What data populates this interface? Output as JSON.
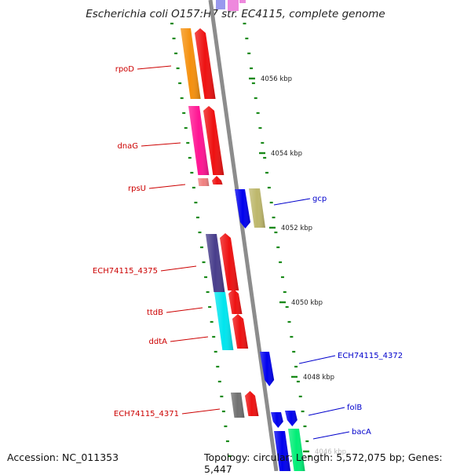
{
  "header": {
    "title": "Escherichia coli O157:H7 str. EC4115, complete genome"
  },
  "footer": {
    "accession": "Accession: NC_011353",
    "summary": "Topology: circular; Length: 5,572,075 bp; Genes: 5,447"
  },
  "map": {
    "backbone_color": "#8c8c8c",
    "tick_color": "#1a8a1a",
    "label_color_left": "#cc0000",
    "label_color_right": "#0000cc",
    "scale_labels": [
      "4056 kbp",
      "4054 kbp",
      "4052 kbp",
      "4050 kbp",
      "4048 kbp",
      "4046 kbp"
    ],
    "genes_left": [
      {
        "name": "rpoD",
        "color": "#f5900d"
      },
      {
        "name": "dnaG",
        "color": "#ff1493"
      },
      {
        "name": "rpsU",
        "color": "#f08080"
      },
      {
        "name": "ECH74115_4375",
        "color": "#483d8b"
      },
      {
        "name": "ttdB",
        "color": "#00e5ee"
      },
      {
        "name": "ddtA",
        "color": "#00e5ee"
      },
      {
        "name": "ECH74115_4371",
        "color": "#707070"
      }
    ],
    "genes_right": [
      {
        "name": "gcp",
        "color": "#bdb76b"
      },
      {
        "name": "ECH74115_4372",
        "color": "#0000ee"
      },
      {
        "name": "folB",
        "color": "#0000ee"
      },
      {
        "name": "bacA",
        "color": "#00ee76"
      }
    ]
  }
}
